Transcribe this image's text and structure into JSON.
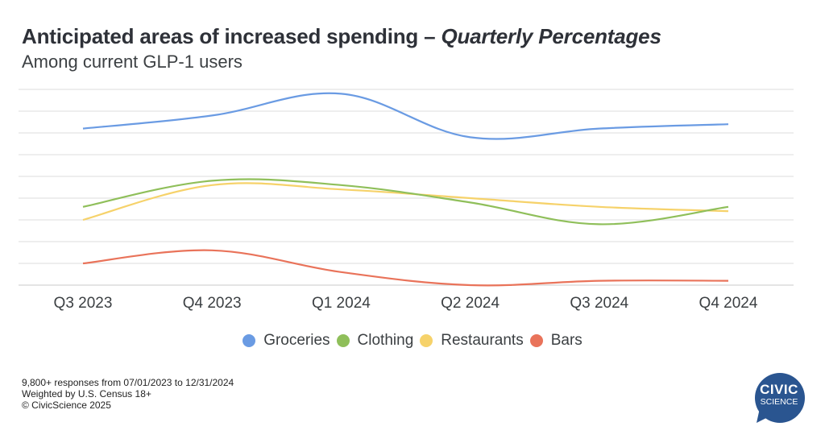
{
  "header": {
    "title_main": "Anticipated areas of increased spending – ",
    "title_italic": "Quarterly Percentages",
    "subtitle": "Among current GLP-1 users"
  },
  "chart_data": {
    "type": "line",
    "title": "Anticipated areas of increased spending – Quarterly Percentages",
    "subtitle": "Among current GLP-1 users",
    "xlabel": "",
    "ylabel": "",
    "x": [
      "Q3 2023",
      "Q4 2023",
      "Q1 2024",
      "Q2 2024",
      "Q3 2024",
      "Q4 2024"
    ],
    "ylim": [
      0,
      45
    ],
    "y_gridline_step": 5,
    "y_tick_labels_shown": false,
    "grid": true,
    "smooth": true,
    "legend_position": "bottom",
    "series": [
      {
        "name": "Groceries",
        "color": "#6a9be3",
        "values": [
          36,
          39,
          44,
          34,
          36,
          37
        ]
      },
      {
        "name": "Clothing",
        "color": "#8fbf5a",
        "values": [
          18,
          24,
          23,
          19,
          14,
          18
        ]
      },
      {
        "name": "Restaurants",
        "color": "#f6d26a",
        "values": [
          15,
          23,
          22,
          20,
          18,
          17
        ]
      },
      {
        "name": "Bars",
        "color": "#e9735a",
        "values": [
          5,
          8,
          3,
          0,
          1,
          1
        ]
      }
    ]
  },
  "footnote": {
    "line1": "9,800+ responses from 07/01/2023 to 12/31/2024",
    "line2": "Weighted by U.S. Census 18+",
    "line3": "© CivicScience 2025"
  },
  "logo": {
    "line1": "CIVIC",
    "line2": "SCIENCE",
    "color": "#2a5590"
  }
}
